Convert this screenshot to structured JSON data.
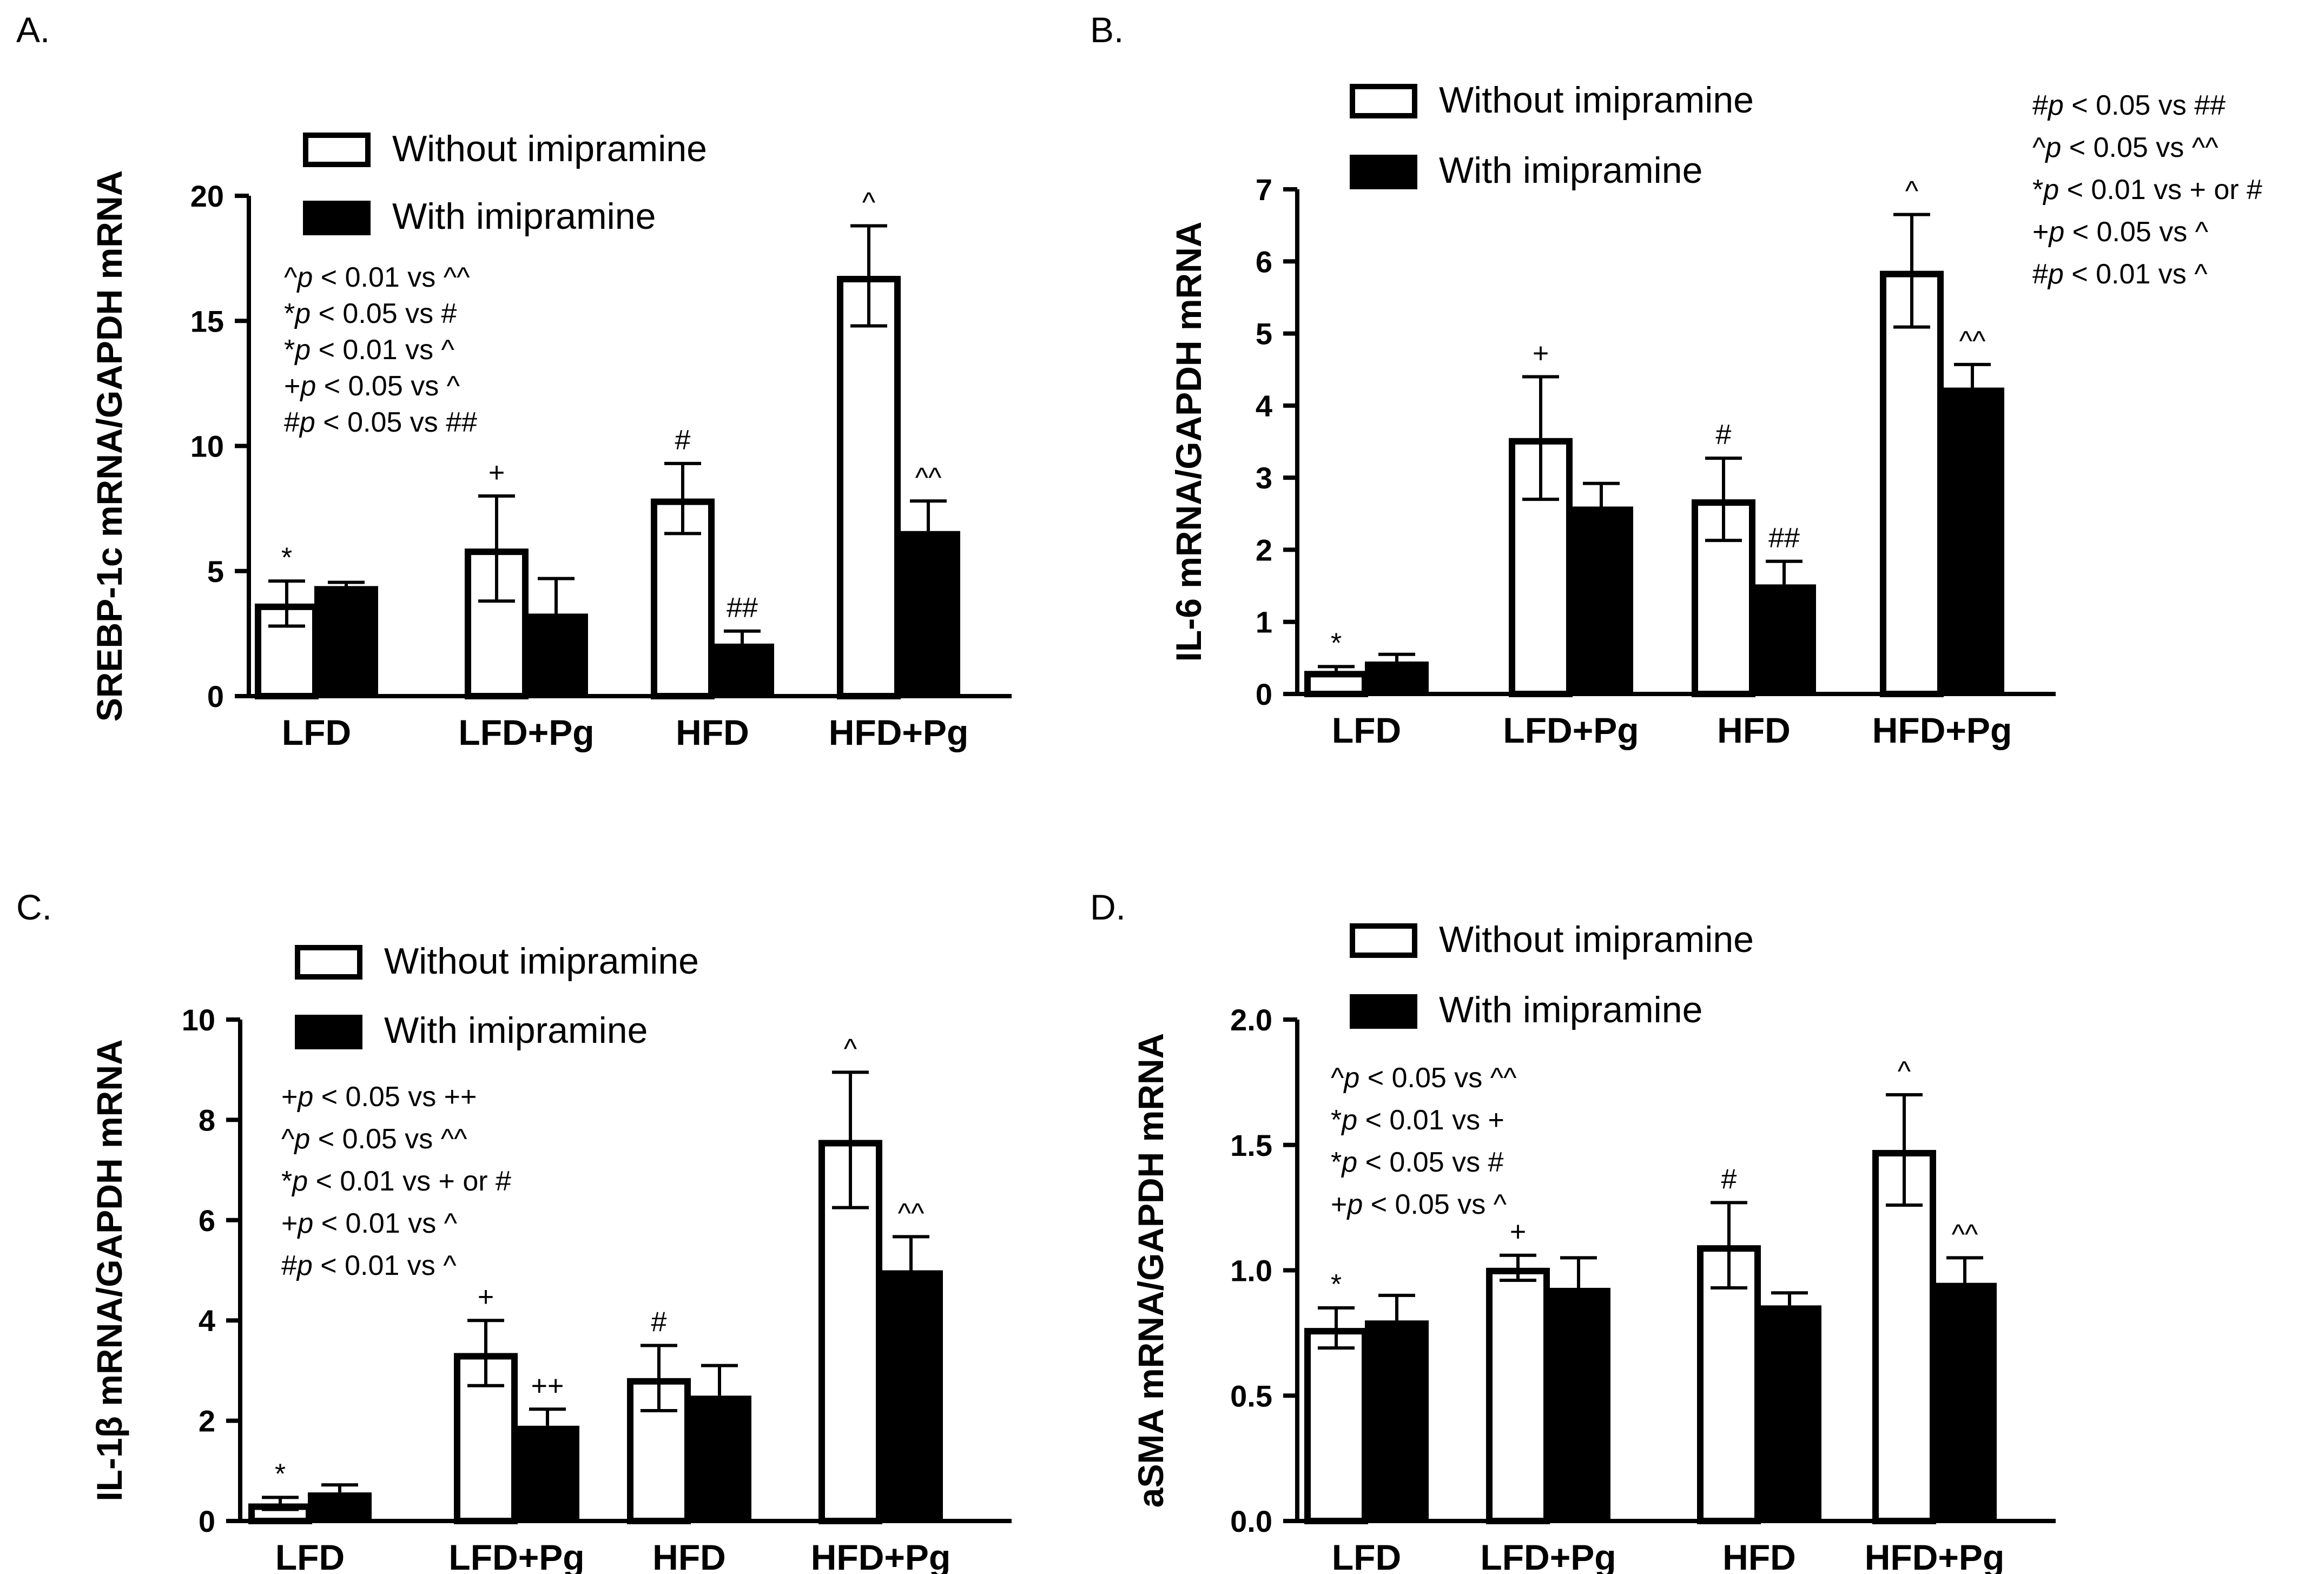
{
  "legend": {
    "without_label": "Without imipramine",
    "with_label": "With imipramine"
  },
  "colors": {
    "without_fill": "#ffffff",
    "with_fill": "#000000",
    "stroke": "#000000"
  },
  "chart_data": [
    {
      "panel": "A.",
      "type": "bar",
      "ylabel": "SREBP-1c mRNA/GAPDH mRNA",
      "ylim": [
        0,
        20
      ],
      "yticks": [
        "0",
        "5",
        "10",
        "15",
        "20"
      ],
      "yticks_values": [
        0,
        5,
        10,
        15,
        20
      ],
      "categories": [
        "LFD",
        "LFD+Pg",
        "HFD",
        "HFD+Pg"
      ],
      "series": [
        {
          "name": "Without imipramine",
          "values": [
            3.7,
            5.9,
            7.9,
            16.8
          ],
          "errors": [
            0.9,
            2.1,
            1.4,
            2.0
          ],
          "marks": [
            "*",
            "+",
            "#",
            "^"
          ]
        },
        {
          "name": "With imipramine",
          "values": [
            4.4,
            3.3,
            2.1,
            6.6
          ],
          "errors": [
            0.15,
            1.4,
            0.5,
            1.2
          ],
          "marks": [
            "",
            "",
            "##",
            "^^"
          ]
        }
      ],
      "notes": [
        "^p < 0.01 vs ^^",
        "*p < 0.05 vs #",
        "*p < 0.01 vs ^",
        "+p < 0.05 vs ^",
        "#p < 0.05 vs ##"
      ]
    },
    {
      "panel": "B.",
      "type": "bar",
      "ylabel": "IL-6 mRNA/GAPDH mRNA",
      "ylim": [
        0,
        7
      ],
      "yticks": [
        "0",
        "1",
        "2",
        "3",
        "4",
        "5",
        "6",
        "7"
      ],
      "yticks_values": [
        0,
        1,
        2,
        3,
        4,
        5,
        6,
        7
      ],
      "categories": [
        "LFD",
        "LFD+Pg",
        "HFD",
        "HFD+Pg"
      ],
      "series": [
        {
          "name": "Without imipramine",
          "values": [
            0.32,
            3.55,
            2.7,
            5.87
          ],
          "errors": [
            0.06,
            0.85,
            0.57,
            0.78
          ],
          "marks": [
            "*",
            "+",
            "#",
            "^"
          ]
        },
        {
          "name": "With imipramine",
          "values": [
            0.45,
            2.6,
            1.52,
            4.25
          ],
          "errors": [
            0.1,
            0.32,
            0.32,
            0.32
          ],
          "marks": [
            "",
            "",
            "##",
            "^^"
          ]
        }
      ],
      "notes": [
        "#p < 0.05 vs ##",
        "^p < 0.05 vs ^^",
        "*p < 0.01 vs + or #",
        "+p < 0.05 vs ^",
        "#p < 0.01 vs ^"
      ]
    },
    {
      "panel": "C.",
      "type": "bar",
      "ylabel": "IL-1β mRNA/GAPDH mRNA",
      "ylim": [
        0,
        10
      ],
      "yticks": [
        "0",
        "2",
        "4",
        "6",
        "8",
        "10"
      ],
      "yticks_values": [
        0,
        2,
        4,
        6,
        8,
        10
      ],
      "categories": [
        "LFD",
        "LFD+Pg",
        "HFD",
        "HFD+Pg"
      ],
      "series": [
        {
          "name": "Without imipramine",
          "values": [
            0.35,
            3.35,
            2.85,
            7.6
          ],
          "errors": [
            0.12,
            0.65,
            0.65,
            1.35
          ],
          "marks": [
            "*",
            "+",
            "#",
            "^"
          ]
        },
        {
          "name": "With imipramine",
          "values": [
            0.57,
            1.9,
            2.5,
            5.0
          ],
          "errors": [
            0.15,
            0.33,
            0.6,
            0.67
          ],
          "marks": [
            "",
            "++",
            "",
            "^^"
          ]
        }
      ],
      "notes": [
        "+p < 0.05 vs ++",
        "^p < 0.05 vs ^^",
        "*p < 0.01 vs + or #",
        "+p < 0.01 vs ^",
        "#p < 0.01 vs ^"
      ]
    },
    {
      "panel": "D.",
      "type": "bar",
      "ylabel": "aSMA mRNA/GAPDH mRNA",
      "ylim": [
        0,
        2
      ],
      "yticks": [
        "0.0",
        "0.5",
        "1.0",
        "1.5",
        "2.0"
      ],
      "yticks_values": [
        0,
        0.5,
        1.0,
        1.5,
        2.0
      ],
      "categories": [
        "LFD",
        "LFD+Pg",
        "HFD",
        "HFD+Pg"
      ],
      "series": [
        {
          "name": "Without imipramine",
          "values": [
            0.77,
            1.01,
            1.1,
            1.48
          ],
          "errors": [
            0.08,
            0.05,
            0.17,
            0.22
          ],
          "marks": [
            "*",
            "+",
            "#",
            "^"
          ]
        },
        {
          "name": "With imipramine",
          "values": [
            0.8,
            0.93,
            0.86,
            0.95
          ],
          "errors": [
            0.1,
            0.12,
            0.05,
            0.1
          ],
          "marks": [
            "",
            "",
            "",
            "^^"
          ]
        }
      ],
      "notes": [
        "^p < 0.05 vs ^^",
        "*p < 0.01 vs +",
        "*p < 0.05 vs #",
        "+p < 0.05 vs ^"
      ]
    }
  ]
}
